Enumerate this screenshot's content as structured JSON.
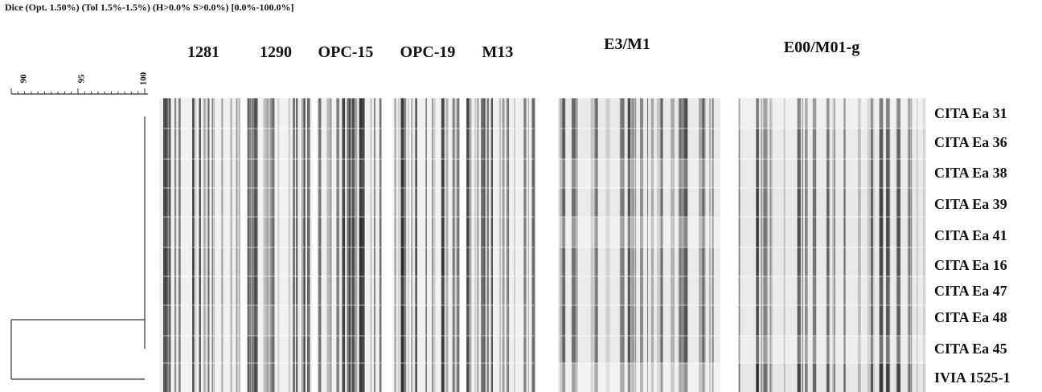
{
  "header": "Dice (Opt. 1.50%) (Tol 1.5%-1.5%) (H>0.0% S>0.0%) [0.0%-100.0%]",
  "scale": {
    "ticks": [
      90,
      95,
      100
    ]
  },
  "markers": [
    "1281",
    "1290",
    "OPC-15",
    "OPC-19",
    "M13",
    "E3/M1",
    "E00/M01-g"
  ],
  "samples": [
    "CITA Ea 31",
    "CITA Ea 36",
    "CITA Ea 38",
    "CITA Ea 39",
    "CITA Ea 41",
    "CITA Ea 16",
    "CITA Ea 47",
    "CITA Ea 48",
    "CITA Ea 45",
    "IVIA 1525-1"
  ],
  "dendrogram": {
    "clusters": [
      {
        "members": [
          "CITA Ea 31",
          "CITA Ea 36",
          "CITA Ea 38",
          "CITA Ea 39",
          "CITA Ea 41",
          "CITA Ea 16",
          "CITA Ea 47",
          "CITA Ea 48",
          "CITA Ea 45"
        ],
        "similarity": 100
      },
      {
        "members": [
          "cluster-1",
          "IVIA 1525-1"
        ],
        "similarity": 89
      }
    ]
  },
  "colors": {
    "band": "#1a1a1a",
    "lane_bg": "#f2f2f2",
    "line": "#333333"
  }
}
